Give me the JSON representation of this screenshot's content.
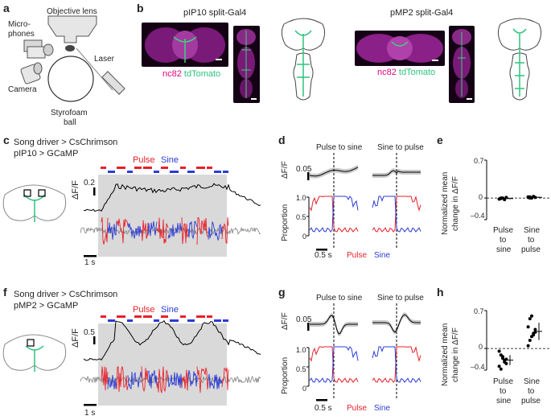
{
  "panel_a": {
    "letter": "a",
    "labels": {
      "objective": "Objective lens",
      "microphones_1": "Micro-",
      "microphones_2": "phones",
      "camera": "Camera",
      "laser": "Laser",
      "ball_1": "Styrofoam",
      "ball_2": "ball"
    }
  },
  "panel_b": {
    "letter": "b",
    "left_title": "pIP10 split-Gal4",
    "right_title": "pMP2 split-Gal4",
    "stain_1": "nc82",
    "stain_2": "tdTomato"
  },
  "panel_c": {
    "letter": "c",
    "line1": "Song driver > CsChrimson",
    "line2": "pIP10 > GCaMP",
    "pulse": "Pulse",
    "sine": "Sine",
    "dff": "ΔF/F",
    "scale_value": "0.2",
    "time_scale": "1 s"
  },
  "panel_d": {
    "letter": "d",
    "title_left": "Pulse to sine",
    "title_right": "Sine to pulse",
    "dff": "ΔF/F",
    "scale_value": "0.05",
    "proportion": "Proportion",
    "yticks": [
      "1.0",
      "0.5",
      "0"
    ],
    "time_scale": "0.5 s",
    "pulse": "Pulse",
    "sine": "Sine"
  },
  "panel_e": {
    "letter": "e",
    "ylabel_1": "Normalized mean",
    "ylabel_2": "change in ΔF/F",
    "yticks": [
      "0.7",
      "0",
      "–0.4"
    ],
    "cat1_1": "Pulse",
    "cat1_2": "to",
    "cat1_3": "sine",
    "cat2_1": "Sine",
    "cat2_2": "to",
    "cat2_3": "pulse"
  },
  "panel_f": {
    "letter": "f",
    "line1": "Song driver > CsChrimson",
    "line2": "pMP2 > GCaMP",
    "pulse": "Pulse",
    "sine": "Sine",
    "dff": "ΔF/F",
    "scale_value": "0.5",
    "time_scale": "1 s"
  },
  "panel_g": {
    "letter": "g",
    "title_left": "Pulse to sine",
    "title_right": "Sine to pulse",
    "dff": "ΔF/F",
    "scale_value": "0.05",
    "proportion": "Proportion",
    "yticks": [
      "1.0",
      "0.5",
      "0"
    ],
    "time_scale": "0.5 s",
    "pulse": "Pulse",
    "sine": "Sine"
  },
  "panel_h": {
    "letter": "h",
    "ylabel_1": "Normalized mean",
    "ylabel_2": "change in ΔF/F",
    "yticks": [
      "0.7",
      "0",
      "–0.4"
    ],
    "cat1_1": "Pulse",
    "cat1_2": "to",
    "cat1_3": "sine",
    "cat2_1": "Sine",
    "cat2_2": "to",
    "cat2_3": "pulse"
  },
  "colors": {
    "pulse": "#e8202a",
    "sine": "#2b3bd6",
    "neuron": "#2ec27e",
    "stim_shade": "#d9d9d9",
    "noise": "#808080"
  },
  "chart_data": [
    {
      "type": "scatter",
      "panel": "e",
      "categories": [
        "Pulse to sine",
        "Sine to pulse"
      ],
      "ylim": [
        -0.4,
        0.7
      ],
      "series": [
        {
          "values_pulse_to_sine": [
            -0.02,
            -0.01,
            0.0,
            -0.03,
            0.01,
            -0.02,
            0.0
          ],
          "values_sine_to_pulse": [
            0.01,
            0.02,
            0.0,
            0.03,
            0.01,
            0.02,
            0.0
          ]
        }
      ]
    },
    {
      "type": "scatter",
      "panel": "h",
      "categories": [
        "Pulse to sine",
        "Sine to pulse"
      ],
      "ylim": [
        -0.4,
        0.7
      ],
      "series": [
        {
          "values_pulse_to_sine": [
            -0.05,
            -0.12,
            -0.18,
            -0.22,
            -0.28,
            -0.33,
            -0.38,
            -0.15,
            -0.25,
            -0.2
          ],
          "values_sine_to_pulse": [
            0.05,
            0.15,
            0.22,
            0.28,
            0.35,
            0.4,
            0.55,
            0.6,
            0.25,
            0.3
          ]
        }
      ]
    }
  ]
}
